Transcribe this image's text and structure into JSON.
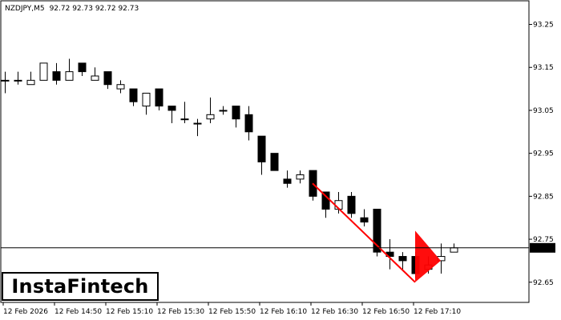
{
  "header": {
    "symbol": "NZDJPY,M5",
    "ohlc": "92.72 92.73 92.72 92.73"
  },
  "brand": {
    "logo_text": "InstaFintech"
  },
  "colors": {
    "background": "#ffffff",
    "axis": "#000000",
    "bull_body": "#ffffff",
    "bear_body": "#000000",
    "wick": "#000000",
    "pattern": "#ff0000",
    "price_line": "#000000"
  },
  "chart_data": {
    "type": "candlestick",
    "title": "",
    "current_price": 92.73,
    "current_price_label": "92.73",
    "ylim": [
      92.603,
      93.305
    ],
    "y_ticks": [
      {
        "value": 93.25,
        "label": "93.25"
      },
      {
        "value": 93.15,
        "label": "93.15"
      },
      {
        "value": 93.05,
        "label": "93.05"
      },
      {
        "value": 92.95,
        "label": "92.95"
      },
      {
        "value": 92.85,
        "label": "92.85"
      },
      {
        "value": 92.75,
        "label": "92.75"
      },
      {
        "value": 92.65,
        "label": "92.65"
      }
    ],
    "x_ticks": [
      {
        "index": 0,
        "label": "12 Feb 2026"
      },
      {
        "index": 4,
        "label": "12 Feb 14:50"
      },
      {
        "index": 8,
        "label": "12 Feb 15:10"
      },
      {
        "index": 12,
        "label": "12 Feb 15:30"
      },
      {
        "index": 16,
        "label": "12 Feb 15:50"
      },
      {
        "index": 20,
        "label": "12 Feb 16:10"
      },
      {
        "index": 24,
        "label": "12 Feb 16:30"
      },
      {
        "index": 28,
        "label": "12 Feb 16:50"
      },
      {
        "index": 32,
        "label": "12 Feb 17:10"
      }
    ],
    "candles": [
      {
        "o": 93.12,
        "h": 93.14,
        "l": 93.09,
        "c": 93.12
      },
      {
        "o": 93.12,
        "h": 93.14,
        "l": 93.11,
        "c": 93.12
      },
      {
        "o": 93.11,
        "h": 93.14,
        "l": 93.11,
        "c": 93.12
      },
      {
        "o": 93.12,
        "h": 93.16,
        "l": 93.12,
        "c": 93.16
      },
      {
        "o": 93.14,
        "h": 93.16,
        "l": 93.11,
        "c": 93.12
      },
      {
        "o": 93.12,
        "h": 93.17,
        "l": 93.12,
        "c": 93.14
      },
      {
        "o": 93.16,
        "h": 93.16,
        "l": 93.13,
        "c": 93.14
      },
      {
        "o": 93.12,
        "h": 93.15,
        "l": 93.12,
        "c": 93.13
      },
      {
        "o": 93.14,
        "h": 93.14,
        "l": 93.1,
        "c": 93.11
      },
      {
        "o": 93.1,
        "h": 93.12,
        "l": 93.09,
        "c": 93.11
      },
      {
        "o": 93.1,
        "h": 93.1,
        "l": 93.06,
        "c": 93.07
      },
      {
        "o": 93.06,
        "h": 93.09,
        "l": 93.04,
        "c": 93.09
      },
      {
        "o": 93.1,
        "h": 93.1,
        "l": 93.05,
        "c": 93.06
      },
      {
        "o": 93.06,
        "h": 93.06,
        "l": 93.02,
        "c": 93.05
      },
      {
        "o": 93.03,
        "h": 93.07,
        "l": 93.02,
        "c": 93.03
      },
      {
        "o": 93.02,
        "h": 93.03,
        "l": 92.99,
        "c": 93.02
      },
      {
        "o": 93.03,
        "h": 93.08,
        "l": 93.02,
        "c": 93.04
      },
      {
        "o": 93.05,
        "h": 93.06,
        "l": 93.04,
        "c": 93.05
      },
      {
        "o": 93.06,
        "h": 93.06,
        "l": 93.01,
        "c": 93.03
      },
      {
        "o": 93.04,
        "h": 93.06,
        "l": 92.98,
        "c": 93.0
      },
      {
        "o": 92.99,
        "h": 92.99,
        "l": 92.9,
        "c": 92.93
      },
      {
        "o": 92.95,
        "h": 92.95,
        "l": 92.91,
        "c": 92.91
      },
      {
        "o": 92.89,
        "h": 92.91,
        "l": 92.87,
        "c": 92.88
      },
      {
        "o": 92.89,
        "h": 92.91,
        "l": 92.88,
        "c": 92.9
      },
      {
        "o": 92.91,
        "h": 92.91,
        "l": 92.84,
        "c": 92.85
      },
      {
        "o": 92.86,
        "h": 92.86,
        "l": 92.8,
        "c": 92.82
      },
      {
        "o": 92.82,
        "h": 92.86,
        "l": 92.81,
        "c": 92.84
      },
      {
        "o": 92.85,
        "h": 92.86,
        "l": 92.8,
        "c": 92.81
      },
      {
        "o": 92.8,
        "h": 92.82,
        "l": 92.78,
        "c": 92.79
      },
      {
        "o": 92.82,
        "h": 92.82,
        "l": 92.71,
        "c": 92.72
      },
      {
        "o": 92.72,
        "h": 92.75,
        "l": 92.68,
        "c": 92.71
      },
      {
        "o": 92.71,
        "h": 92.72,
        "l": 92.68,
        "c": 92.7
      },
      {
        "o": 92.71,
        "h": 92.72,
        "l": 92.66,
        "c": 92.67
      },
      {
        "o": 92.68,
        "h": 92.71,
        "l": 92.67,
        "c": 92.69
      },
      {
        "o": 92.7,
        "h": 92.74,
        "l": 92.67,
        "c": 92.71
      },
      {
        "o": 92.72,
        "h": 92.74,
        "l": 92.72,
        "c": 92.73
      }
    ],
    "pattern": {
      "name": "bearish pennant",
      "pole": {
        "from": {
          "index": 24,
          "price": 92.88
        },
        "to": {
          "index": 32,
          "price": 92.65
        }
      },
      "flag": {
        "tip": {
          "index": 32,
          "price": 92.65
        },
        "top": {
          "index": 32,
          "price": 92.77
        },
        "apex": {
          "index": 34,
          "price": 92.7
        }
      }
    }
  }
}
